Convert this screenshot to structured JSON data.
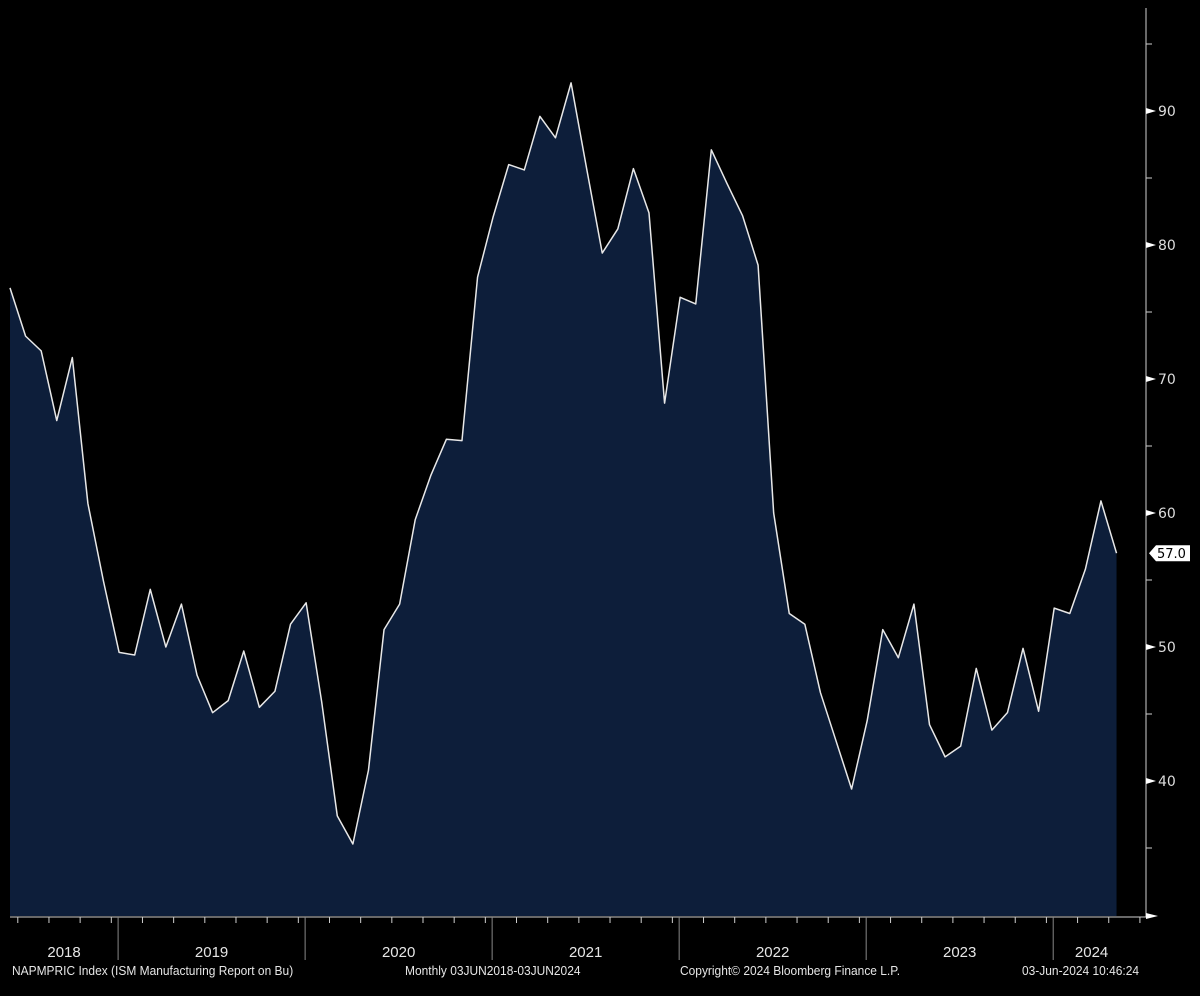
{
  "chart_data": {
    "type": "area",
    "title": "",
    "xlabel": "",
    "ylabel": "",
    "ylim": [
      30,
      97
    ],
    "yticks": [
      40,
      50,
      60,
      70,
      80,
      90
    ],
    "year_labels": [
      "2018",
      "2019",
      "2020",
      "2021",
      "2022",
      "2023",
      "2024"
    ],
    "last_value_label": "57.0",
    "grid": false,
    "start": "2018-06",
    "frequency": "monthly",
    "x": [
      "2018-06",
      "2018-07",
      "2018-08",
      "2018-09",
      "2018-10",
      "2018-11",
      "2018-12",
      "2019-01",
      "2019-02",
      "2019-03",
      "2019-04",
      "2019-05",
      "2019-06",
      "2019-07",
      "2019-08",
      "2019-09",
      "2019-10",
      "2019-11",
      "2019-12",
      "2020-01",
      "2020-02",
      "2020-03",
      "2020-04",
      "2020-05",
      "2020-06",
      "2020-07",
      "2020-08",
      "2020-09",
      "2020-10",
      "2020-11",
      "2020-12",
      "2021-01",
      "2021-02",
      "2021-03",
      "2021-04",
      "2021-05",
      "2021-06",
      "2021-07",
      "2021-08",
      "2021-09",
      "2021-10",
      "2021-11",
      "2021-12",
      "2022-01",
      "2022-02",
      "2022-03",
      "2022-04",
      "2022-05",
      "2022-06",
      "2022-07",
      "2022-08",
      "2022-09",
      "2022-10",
      "2022-11",
      "2022-12",
      "2023-01",
      "2023-02",
      "2023-03",
      "2023-04",
      "2023-05",
      "2023-06",
      "2023-07",
      "2023-08",
      "2023-09",
      "2023-10",
      "2023-11",
      "2023-12",
      "2024-01",
      "2024-02",
      "2024-03",
      "2024-04",
      "2024-05"
    ],
    "values": [
      76.8,
      73.2,
      72.1,
      66.9,
      71.6,
      60.7,
      54.9,
      49.6,
      49.4,
      54.3,
      50.0,
      53.2,
      47.9,
      45.1,
      46.0,
      49.7,
      45.5,
      46.7,
      51.7,
      53.3,
      45.9,
      37.4,
      35.3,
      40.8,
      51.3,
      53.2,
      59.5,
      62.8,
      65.5,
      65.4,
      77.6,
      82.1,
      86.0,
      85.6,
      89.6,
      88.0,
      92.1,
      85.7,
      79.4,
      81.2,
      85.7,
      82.4,
      68.2,
      76.1,
      75.6,
      87.1,
      84.6,
      82.2,
      78.5,
      60.0,
      52.5,
      51.7,
      46.6,
      43.0,
      39.4,
      44.5,
      51.3,
      49.2,
      53.2,
      44.2,
      41.8,
      42.6,
      48.4,
      43.8,
      45.1,
      49.9,
      45.2,
      52.9,
      52.5,
      55.8,
      60.9,
      57.0
    ],
    "colors": {
      "background": "#000000",
      "fill": "#0d1e3a",
      "line": "#e8e8e8",
      "axis": "#cfcfcf"
    }
  },
  "footer": {
    "ticker": "NAPMPRIC Index (ISM Manufacturing Report on Bu)",
    "range": "Monthly 03JUN2018-03JUN2024",
    "copyright": "Copyright© 2024 Bloomberg Finance L.P.",
    "timestamp": "03-Jun-2024 10:46:24"
  }
}
